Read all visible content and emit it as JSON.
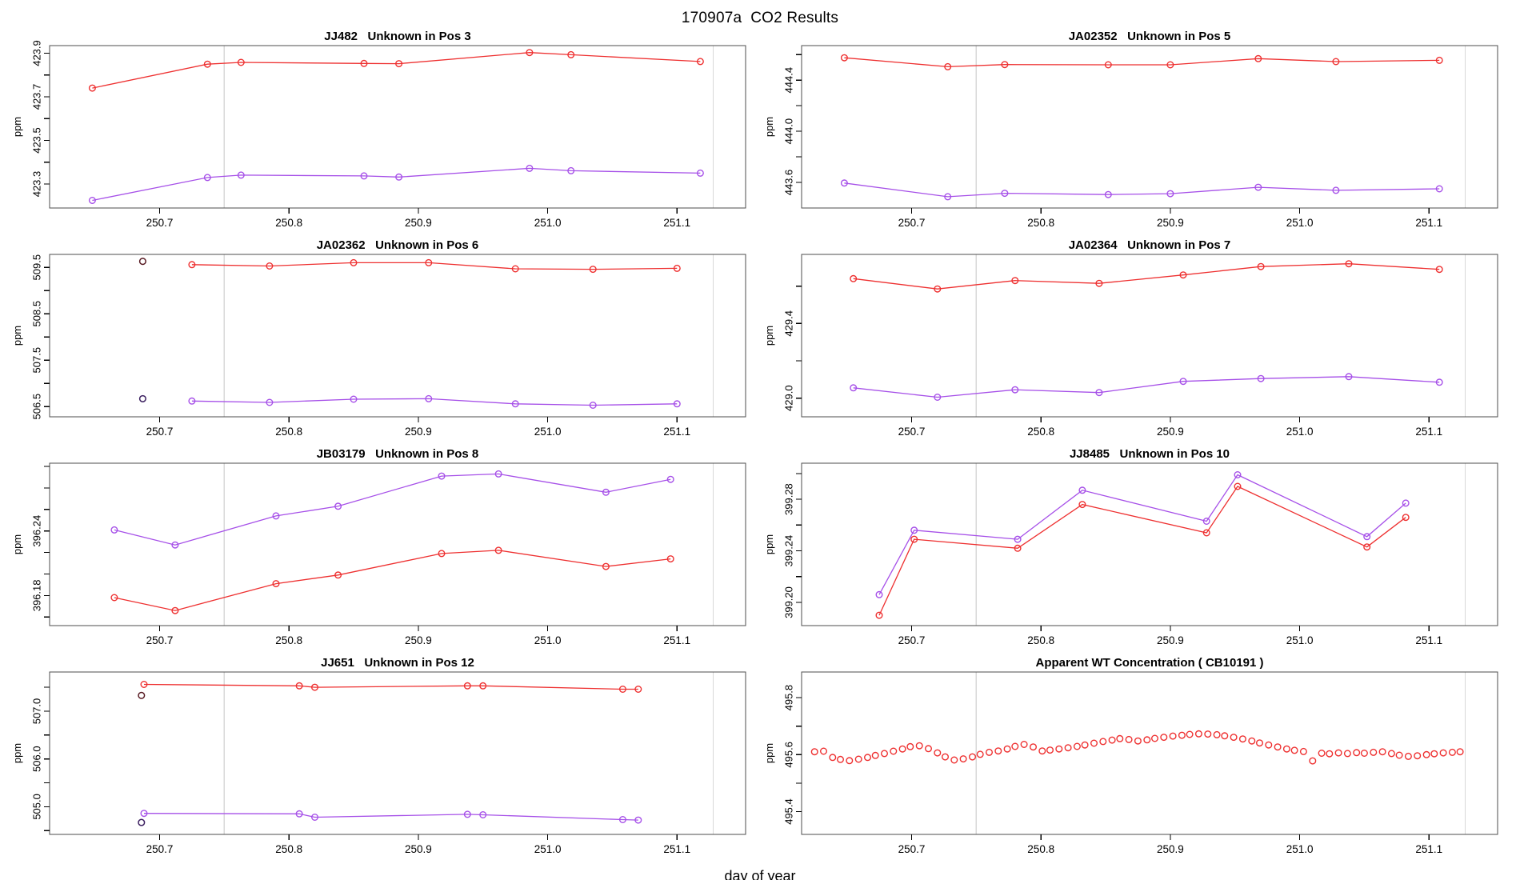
{
  "title": "170907a  CO2 Results",
  "xlabel": "day of year",
  "colors": {
    "red": "#EE3030",
    "purple": "#A650E8",
    "dark_red": "#571A22",
    "dark_purple": "#3C2060",
    "grid": "#D8D8D8",
    "box": "#4D4D4D",
    "tick": "#000000"
  },
  "x_ticks": [
    {
      "v": 250.7,
      "l": "250.7"
    },
    {
      "v": 250.8,
      "l": "250.8"
    },
    {
      "v": 250.9,
      "l": "250.9"
    },
    {
      "v": 251.0,
      "l": "251.0"
    },
    {
      "v": 251.1,
      "l": "251.1"
    }
  ],
  "chart_data": [
    {
      "type": "line",
      "title": "JJ482   Unknown in Pos 3",
      "ylabel": "ppm",
      "xlim": [
        250.615,
        251.153
      ],
      "ylim": [
        423.19,
        423.935
      ],
      "grid_x": [
        250.75,
        251.128
      ],
      "yticks": [
        {
          "v": 423.3,
          "l": "423.3"
        },
        {
          "v": 423.4,
          "l": ""
        },
        {
          "v": 423.5,
          "l": "423.5"
        },
        {
          "v": 423.6,
          "l": ""
        },
        {
          "v": 423.7,
          "l": "423.7"
        },
        {
          "v": 423.8,
          "l": ""
        },
        {
          "v": 423.9,
          "l": "423.9"
        }
      ],
      "series": [
        {
          "name": "red",
          "color": "red",
          "connected": true,
          "x": [
            250.648,
            250.737,
            250.763,
            250.858,
            250.885,
            250.986,
            251.018,
            251.118
          ],
          "y": [
            423.74,
            423.85,
            423.858,
            423.853,
            423.852,
            423.903,
            423.893,
            423.862
          ]
        },
        {
          "name": "purple",
          "color": "purple",
          "connected": true,
          "x": [
            250.648,
            250.737,
            250.763,
            250.858,
            250.885,
            250.986,
            251.018,
            251.118
          ],
          "y": [
            423.225,
            423.33,
            423.341,
            423.337,
            423.332,
            423.372,
            423.361,
            423.35
          ]
        }
      ],
      "points": []
    },
    {
      "type": "line",
      "title": "JA02352   Unknown in Pos 5",
      "ylabel": "ppm",
      "xlim": [
        250.615,
        251.153
      ],
      "ylim": [
        443.4,
        444.67
      ],
      "grid_x": [
        250.75,
        251.128
      ],
      "yticks": [
        {
          "v": 443.6,
          "l": "443.6"
        },
        {
          "v": 443.8,
          "l": ""
        },
        {
          "v": 444.0,
          "l": "444.0"
        },
        {
          "v": 444.2,
          "l": ""
        },
        {
          "v": 444.4,
          "l": "444.4"
        },
        {
          "v": 444.6,
          "l": ""
        }
      ],
      "series": [
        {
          "name": "red",
          "color": "red",
          "connected": true,
          "x": [
            250.648,
            250.728,
            250.772,
            250.852,
            250.9,
            250.968,
            251.028,
            251.108
          ],
          "y": [
            444.575,
            444.505,
            444.522,
            444.52,
            444.52,
            444.568,
            444.545,
            444.555
          ]
        },
        {
          "name": "purple",
          "color": "purple",
          "connected": true,
          "x": [
            250.648,
            250.728,
            250.772,
            250.852,
            250.9,
            250.968,
            251.028,
            251.108
          ],
          "y": [
            443.595,
            443.488,
            443.515,
            443.505,
            443.512,
            443.562,
            443.538,
            443.55
          ]
        }
      ],
      "points": []
    },
    {
      "type": "line",
      "title": "JA02362   Unknown in Pos 6",
      "ylabel": "ppm",
      "xlim": [
        250.615,
        251.153
      ],
      "ylim": [
        506.28,
        509.78
      ],
      "grid_x": [
        250.75,
        251.128
      ],
      "yticks": [
        {
          "v": 506.5,
          "l": "506.5"
        },
        {
          "v": 507.0,
          "l": ""
        },
        {
          "v": 507.5,
          "l": "507.5"
        },
        {
          "v": 508.0,
          "l": ""
        },
        {
          "v": 508.5,
          "l": "508.5"
        },
        {
          "v": 509.0,
          "l": ""
        },
        {
          "v": 509.5,
          "l": "509.5"
        }
      ],
      "series": [
        {
          "name": "red",
          "color": "red",
          "connected": true,
          "x": [
            250.725,
            250.785,
            250.85,
            250.908,
            250.975,
            251.035,
            251.1
          ],
          "y": [
            509.56,
            509.53,
            509.6,
            509.6,
            509.47,
            509.46,
            509.48
          ]
        },
        {
          "name": "purple",
          "color": "purple",
          "connected": true,
          "x": [
            250.725,
            250.785,
            250.85,
            250.908,
            250.975,
            251.035,
            251.1
          ],
          "y": [
            506.62,
            506.59,
            506.66,
            506.67,
            506.56,
            506.53,
            506.56
          ]
        }
      ],
      "points": [
        {
          "x": 250.687,
          "y": 509.63,
          "color": "dark_red"
        },
        {
          "x": 250.687,
          "y": 506.67,
          "color": "dark_purple"
        }
      ]
    },
    {
      "type": "line",
      "title": "JA02364   Unknown in Pos 7",
      "ylabel": "ppm",
      "xlim": [
        250.615,
        251.153
      ],
      "ylim": [
        428.9,
        429.77
      ],
      "grid_x": [
        250.75,
        251.128
      ],
      "yticks": [
        {
          "v": 429.0,
          "l": "429.0"
        },
        {
          "v": 429.2,
          "l": ""
        },
        {
          "v": 429.4,
          "l": "429.4"
        },
        {
          "v": 429.6,
          "l": ""
        }
      ],
      "series": [
        {
          "name": "red",
          "color": "red",
          "connected": true,
          "x": [
            250.655,
            250.72,
            250.78,
            250.845,
            250.91,
            250.97,
            251.038,
            251.108
          ],
          "y": [
            429.64,
            429.585,
            429.63,
            429.615,
            429.66,
            429.705,
            429.72,
            429.69
          ]
        },
        {
          "name": "purple",
          "color": "purple",
          "connected": true,
          "x": [
            250.655,
            250.72,
            250.78,
            250.845,
            250.91,
            250.97,
            251.038,
            251.108
          ],
          "y": [
            429.055,
            429.005,
            429.045,
            429.03,
            429.09,
            429.105,
            429.115,
            429.085
          ]
        }
      ],
      "points": []
    },
    {
      "type": "line",
      "title": "JB03179   Unknown in Pos 8",
      "ylabel": "ppm",
      "xlim": [
        250.615,
        251.153
      ],
      "ylim": [
        396.152,
        396.303
      ],
      "grid_x": [
        250.75,
        251.128
      ],
      "yticks": [
        {
          "v": 396.16,
          "l": ""
        },
        {
          "v": 396.18,
          "l": "396.18"
        },
        {
          "v": 396.2,
          "l": ""
        },
        {
          "v": 396.22,
          "l": ""
        },
        {
          "v": 396.24,
          "l": "396.24"
        },
        {
          "v": 396.26,
          "l": ""
        },
        {
          "v": 396.28,
          "l": ""
        },
        {
          "v": 396.3,
          "l": ""
        }
      ],
      "series": [
        {
          "name": "purple",
          "color": "purple",
          "connected": true,
          "x": [
            250.665,
            250.712,
            250.79,
            250.838,
            250.918,
            250.962,
            251.045,
            251.095
          ],
          "y": [
            396.241,
            396.227,
            396.254,
            396.263,
            396.291,
            396.293,
            396.276,
            396.288
          ]
        },
        {
          "name": "red",
          "color": "red",
          "connected": true,
          "x": [
            250.665,
            250.712,
            250.79,
            250.838,
            250.918,
            250.962,
            251.045,
            251.095
          ],
          "y": [
            396.178,
            396.166,
            396.191,
            396.199,
            396.219,
            396.222,
            396.207,
            396.214
          ]
        }
      ],
      "points": []
    },
    {
      "type": "line",
      "title": "JJ8485   Unknown in Pos 10",
      "ylabel": "ppm",
      "xlim": [
        250.615,
        251.153
      ],
      "ylim": [
        399.182,
        399.308
      ],
      "grid_x": [
        250.75,
        251.128
      ],
      "yticks": [
        {
          "v": 399.2,
          "l": "399.20"
        },
        {
          "v": 399.22,
          "l": ""
        },
        {
          "v": 399.24,
          "l": "399.24"
        },
        {
          "v": 399.26,
          "l": ""
        },
        {
          "v": 399.28,
          "l": "399.28"
        },
        {
          "v": 399.3,
          "l": ""
        }
      ],
      "series": [
        {
          "name": "purple",
          "color": "purple",
          "connected": true,
          "x": [
            250.675,
            250.702,
            250.782,
            250.832,
            250.928,
            250.952,
            251.052,
            251.082
          ],
          "y": [
            399.206,
            399.256,
            399.249,
            399.287,
            399.263,
            399.299,
            399.251,
            399.277
          ]
        },
        {
          "name": "red",
          "color": "red",
          "connected": true,
          "x": [
            250.675,
            250.702,
            250.782,
            250.832,
            250.928,
            250.952,
            251.052,
            251.082
          ],
          "y": [
            399.19,
            399.249,
            399.242,
            399.276,
            399.254,
            399.29,
            399.243,
            399.266
          ]
        }
      ],
      "points": []
    },
    {
      "type": "line",
      "title": "JJ651   Unknown in Pos 12",
      "ylabel": "ppm",
      "xlim": [
        250.615,
        251.153
      ],
      "ylim": [
        504.42,
        507.82
      ],
      "grid_x": [
        250.75,
        251.128
      ],
      "yticks": [
        {
          "v": 504.5,
          "l": ""
        },
        {
          "v": 505.0,
          "l": "505.0"
        },
        {
          "v": 505.5,
          "l": ""
        },
        {
          "v": 506.0,
          "l": "506.0"
        },
        {
          "v": 506.5,
          "l": ""
        },
        {
          "v": 507.0,
          "l": "507.0"
        },
        {
          "v": 507.5,
          "l": ""
        }
      ],
      "series": [
        {
          "name": "red",
          "color": "red",
          "connected": true,
          "x": [
            250.688,
            250.808,
            250.82,
            250.938,
            250.95,
            251.058,
            251.07
          ],
          "y": [
            507.56,
            507.53,
            507.5,
            507.53,
            507.53,
            507.46,
            507.46
          ]
        },
        {
          "name": "purple",
          "color": "purple",
          "connected": true,
          "x": [
            250.688,
            250.808,
            250.82,
            250.938,
            250.95,
            251.058,
            251.07
          ],
          "y": [
            504.86,
            504.85,
            504.78,
            504.84,
            504.83,
            504.73,
            504.72
          ]
        }
      ],
      "points": [
        {
          "x": 250.686,
          "y": 507.33,
          "color": "dark_red"
        },
        {
          "x": 250.686,
          "y": 504.67,
          "color": "dark_purple"
        }
      ]
    },
    {
      "type": "scatter",
      "title": "Apparent WT Concentration ( CB10191 )",
      "ylabel": "ppm",
      "xlim": [
        250.615,
        251.153
      ],
      "ylim": [
        495.32,
        495.89
      ],
      "grid_x": [
        250.75,
        251.128
      ],
      "yticks": [
        {
          "v": 495.4,
          "l": "495.4"
        },
        {
          "v": 495.5,
          "l": ""
        },
        {
          "v": 495.6,
          "l": "495.6"
        },
        {
          "v": 495.7,
          "l": ""
        },
        {
          "v": 495.8,
          "l": "495.8"
        }
      ],
      "series": [
        {
          "name": "red",
          "color": "red",
          "connected": false,
          "x": [
            250.625,
            250.632,
            250.639,
            250.645,
            250.652,
            250.659,
            250.666,
            250.672,
            250.679,
            250.686,
            250.693,
            250.699,
            250.706,
            250.713,
            250.72,
            250.726,
            250.733,
            250.74,
            250.747,
            250.753,
            250.76,
            250.767,
            250.774,
            250.78,
            250.787,
            250.794,
            250.801,
            250.807,
            250.814,
            250.821,
            250.828,
            250.834,
            250.841,
            250.848,
            250.855,
            250.861,
            250.868,
            250.875,
            250.882,
            250.888,
            250.895,
            250.902,
            250.909,
            250.915,
            250.922,
            250.929,
            250.936,
            250.942,
            250.949,
            250.956,
            250.963,
            250.969,
            250.976,
            250.983,
            250.99,
            250.996,
            251.003,
            251.01,
            251.017,
            251.023,
            251.03,
            251.037,
            251.044,
            251.05,
            251.057,
            251.064,
            251.071,
            251.077,
            251.084,
            251.091,
            251.098,
            251.104,
            251.111,
            251.118,
            251.124
          ],
          "y": [
            495.61,
            495.612,
            495.59,
            495.583,
            495.579,
            495.584,
            495.59,
            495.597,
            495.604,
            495.612,
            495.62,
            495.628,
            495.631,
            495.621,
            495.606,
            495.592,
            495.581,
            495.585,
            495.592,
            495.601,
            495.608,
            495.613,
            495.62,
            495.629,
            495.636,
            495.627,
            495.613,
            495.616,
            495.62,
            495.624,
            495.629,
            495.634,
            495.64,
            495.646,
            495.651,
            495.656,
            495.653,
            495.648,
            495.652,
            495.657,
            495.661,
            495.665,
            495.668,
            495.671,
            495.673,
            495.672,
            495.67,
            495.666,
            495.661,
            495.655,
            495.648,
            495.641,
            495.634,
            495.627,
            495.62,
            495.615,
            495.611,
            495.578,
            495.605,
            495.603,
            495.606,
            495.604,
            495.607,
            495.605,
            495.608,
            495.61,
            495.604,
            495.598,
            495.594,
            495.596,
            495.6,
            495.603,
            495.606,
            495.608,
            495.61
          ]
        }
      ],
      "points": []
    }
  ]
}
